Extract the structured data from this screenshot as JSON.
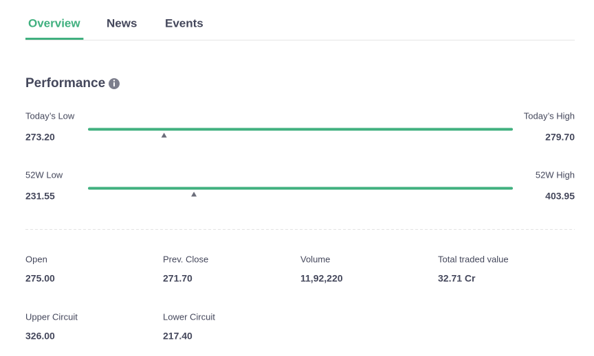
{
  "tabs": [
    {
      "label": "Overview",
      "active": true
    },
    {
      "label": "News",
      "active": false
    },
    {
      "label": "Events",
      "active": false
    }
  ],
  "performance": {
    "title": "Performance",
    "ranges": [
      {
        "low_label": "Today’s Low",
        "high_label": "Today’s High",
        "low": {
          "value": 273.2,
          "label": "273.20"
        },
        "high": {
          "value": 279.7,
          "label": "279.70"
        },
        "current": 274.35
      },
      {
        "low_label": "52W Low",
        "high_label": "52W High",
        "low": {
          "value": 231.55,
          "label": "231.55"
        },
        "high": {
          "value": 403.95,
          "label": "403.95"
        },
        "current": 274.25
      }
    ],
    "stats": [
      {
        "label": "Open",
        "value": "275.00"
      },
      {
        "label": "Prev. Close",
        "value": "271.70"
      },
      {
        "label": "Volume",
        "value": "11,92,220"
      },
      {
        "label": "Total traded value",
        "value": "32.71 Cr"
      },
      {
        "label": "Upper Circuit",
        "value": "326.00"
      },
      {
        "label": "Lower Circuit",
        "value": "217.40"
      }
    ]
  }
}
